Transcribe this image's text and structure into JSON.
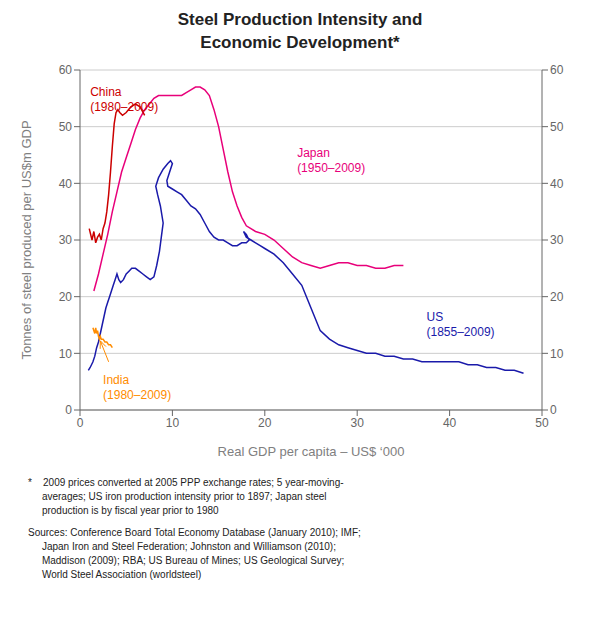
{
  "chart_data": {
    "type": "line",
    "title": "Steel Production Intensity and\nEconomic Development*",
    "xlabel": "Real GDP per capita – US$ ‘000",
    "ylabel": "Tonnes of steel produced per US$m GDP",
    "xlim": [
      0,
      50
    ],
    "ylim": [
      0,
      60
    ],
    "xticks": [
      0,
      10,
      20,
      30,
      40,
      50
    ],
    "yticks": [
      0,
      10,
      20,
      30,
      40,
      50,
      60
    ],
    "y2lim": [
      0,
      60
    ],
    "y2ticks": [
      0,
      10,
      20,
      30,
      40,
      50,
      60
    ],
    "grid": "y",
    "series": [
      {
        "name": "US\n(1855–2009)",
        "color": "#1a1aaa",
        "label_x": 37.5,
        "label_y": 15.0,
        "x": [
          0.9,
          1.1,
          1.4,
          1.6,
          1.8,
          2.0,
          2.2,
          2.4,
          2.6,
          2.8,
          3.0,
          3.2,
          3.4,
          3.6,
          3.8,
          4.0,
          4.2,
          4.4,
          4.7,
          5.0,
          5.3,
          5.6,
          6.0,
          6.4,
          6.8,
          7.2,
          7.6,
          8.0,
          8.3,
          8.6,
          8.8,
          9.0,
          8.7,
          8.4,
          8.2,
          8.5,
          9.0,
          9.5,
          9.8,
          10.0,
          9.7,
          9.4,
          9.5,
          10.0,
          10.5,
          11.0,
          11.5,
          12.0,
          12.5,
          13.0,
          13.5,
          14.0,
          14.5,
          15.0,
          15.5,
          16.0,
          16.5,
          17.0,
          17.5,
          18.0,
          18.3,
          18.0,
          17.7,
          18.0,
          18.5,
          19.0,
          19.5,
          20.0,
          21.0,
          22.0,
          23.0,
          24.0,
          25.0,
          26.0,
          27.0,
          28.0,
          29.0,
          30.0,
          31.0,
          32.0,
          33.0,
          33.5,
          34.0,
          35.0,
          36.0,
          37.0,
          38.0,
          39.0,
          40.0,
          41.0,
          42.0,
          43.0,
          44.0,
          45.0,
          46.0,
          47.0,
          48.0
        ],
        "values": [
          7.0,
          7.5,
          8.5,
          9.5,
          11.0,
          12.0,
          13.5,
          15.0,
          16.5,
          18.0,
          19.0,
          20.0,
          21.0,
          22.0,
          23.0,
          24.0,
          23.0,
          22.5,
          23.0,
          24.0,
          24.5,
          25.0,
          25.0,
          24.5,
          24.0,
          23.5,
          23.0,
          23.5,
          25.5,
          28.0,
          30.5,
          33.0,
          36.0,
          38.0,
          39.5,
          41.0,
          42.5,
          43.5,
          44.0,
          43.5,
          42.0,
          40.5,
          39.5,
          39.0,
          38.5,
          38.0,
          37.0,
          36.0,
          35.5,
          34.5,
          33.0,
          31.5,
          30.5,
          30.0,
          30.0,
          29.5,
          29.0,
          29.0,
          29.5,
          29.5,
          30.0,
          31.0,
          31.5,
          30.5,
          30.0,
          29.5,
          29.0,
          28.5,
          27.5,
          26.0,
          24.0,
          22.0,
          18.0,
          14.0,
          12.5,
          11.5,
          11.0,
          10.5,
          10.0,
          10.0,
          9.5,
          9.5,
          9.5,
          9.0,
          9.0,
          8.5,
          8.5,
          8.5,
          8.5,
          8.5,
          8.0,
          8.0,
          7.5,
          7.5,
          7.0,
          7.0,
          6.5
        ]
      },
      {
        "name": "Japan\n(1950–2009)",
        "color": "#e8007a",
        "label_x": 23.5,
        "label_y": 44.0,
        "x": [
          1.5,
          2.0,
          2.5,
          3.0,
          3.5,
          4.0,
          4.5,
          5.0,
          5.5,
          6.0,
          6.5,
          7.0,
          7.5,
          8.0,
          8.5,
          9.0,
          9.5,
          10.0,
          10.5,
          11.0,
          11.5,
          12.0,
          12.5,
          13.0,
          13.5,
          14.0,
          14.5,
          15.0,
          15.5,
          16.0,
          16.5,
          17.0,
          17.5,
          18.0,
          19.0,
          20.0,
          21.0,
          22.0,
          23.0,
          24.0,
          25.0,
          26.0,
          27.0,
          28.0,
          29.0,
          30.0,
          31.0,
          32.0,
          33.0,
          34.0,
          35.0
        ],
        "values": [
          21.0,
          24.0,
          27.5,
          31.0,
          35.0,
          38.5,
          42.0,
          44.5,
          47.0,
          49.5,
          51.5,
          53.0,
          54.0,
          55.0,
          55.5,
          55.5,
          55.5,
          55.5,
          55.5,
          55.5,
          56.0,
          56.5,
          57.0,
          57.0,
          56.5,
          55.5,
          53.0,
          50.0,
          46.0,
          42.0,
          38.5,
          36.0,
          34.0,
          32.5,
          31.5,
          31.0,
          30.0,
          28.5,
          27.0,
          26.0,
          25.5,
          25.0,
          25.5,
          26.0,
          26.0,
          25.5,
          25.5,
          25.0,
          25.0,
          25.5,
          25.5
        ]
      },
      {
        "name": "China\n(1980–2009)",
        "color": "#cc0000",
        "label_x": 1.1,
        "label_y": 52.0,
        "x": [
          1.0,
          1.3,
          1.5,
          1.7,
          1.9,
          2.1,
          2.3,
          2.5,
          2.7,
          2.9,
          3.1,
          3.3,
          3.5,
          3.7,
          3.9,
          4.1,
          4.3,
          4.6,
          5.0,
          5.5,
          6.0,
          6.5,
          7.0
        ],
        "values": [
          32.0,
          30.0,
          31.5,
          29.5,
          30.5,
          31.0,
          30.0,
          32.0,
          33.0,
          35.0,
          38.0,
          42.0,
          46.5,
          50.5,
          52.5,
          53.0,
          52.5,
          52.0,
          52.5,
          53.5,
          54.0,
          53.5,
          52.0
        ]
      },
      {
        "name": "India\n(1980–2009)",
        "color": "#ff8c00",
        "label_x": 2.5,
        "label_y": 6.5,
        "arrow_from": [
          3.1,
          8.5
        ],
        "arrow_to": [
          2.2,
          12.2
        ],
        "x": [
          1.4,
          1.5,
          1.6,
          1.7,
          1.8,
          1.9,
          2.0,
          2.1,
          2.2,
          2.3,
          2.5,
          2.7,
          2.9,
          3.1,
          3.3,
          3.5
        ],
        "values": [
          14.5,
          14.0,
          13.5,
          14.5,
          13.5,
          14.0,
          13.0,
          12.5,
          13.0,
          12.5,
          12.5,
          12.0,
          12.0,
          11.5,
          11.5,
          11.0
        ]
      }
    ],
    "footnote": "*    2009 prices converted at 2005 PPP exchange rates; 5 year-moving-\n     averages; US iron production intensity prior to 1897; Japan steel\n     production is by fiscal year prior to 1980",
    "sources": "Sources: Conference Board Total Economy Database (January 2010); IMF;\n     Japan Iron and Steel Federation; Johnston and Williamson (2010);\n     Maddison (2009); RBA; US Bureau of Mines; US Geological Survey;\n     World Steel Association (worldsteel)"
  }
}
